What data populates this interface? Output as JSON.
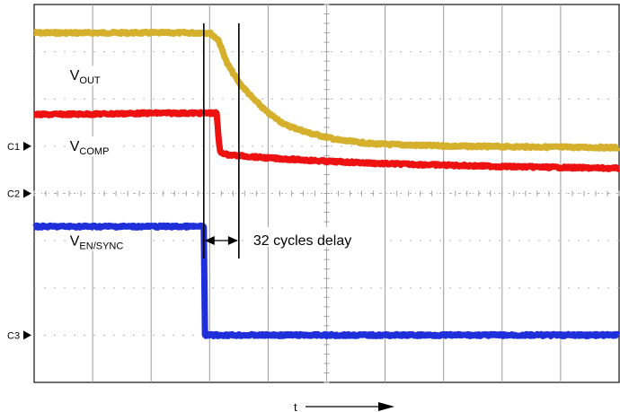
{
  "chart_data": {
    "type": "line",
    "title": "",
    "x_axis": {
      "label": "t",
      "divisions": 10
    },
    "y_axis": {
      "divisions": 8
    },
    "grid": true,
    "channel_markers": [
      {
        "label": "C1",
        "level": 5.0
      },
      {
        "label": "C2",
        "level": 4.0
      },
      {
        "label": "C3",
        "level": 1.0
      }
    ],
    "series": [
      {
        "name": "V",
        "subscript": "OUT",
        "color": "#d4b02c",
        "label_pos": [
          0.15,
          6.4
        ],
        "points": [
          [
            0.0,
            7.4
          ],
          [
            1.0,
            7.4
          ],
          [
            2.0,
            7.4
          ],
          [
            3.0,
            7.4
          ],
          [
            3.15,
            7.25
          ],
          [
            3.3,
            6.75
          ],
          [
            3.5,
            6.35
          ],
          [
            3.75,
            6.0
          ],
          [
            4.0,
            5.7
          ],
          [
            4.3,
            5.45
          ],
          [
            4.7,
            5.28
          ],
          [
            5.2,
            5.13
          ],
          [
            5.8,
            5.05
          ],
          [
            6.5,
            5.02
          ],
          [
            7.2,
            5.0
          ],
          [
            8.0,
            4.99
          ],
          [
            9.0,
            4.98
          ],
          [
            10.0,
            4.97
          ]
        ]
      },
      {
        "name": "V",
        "subscript": "COMP",
        "color": "#ee1111",
        "label_pos": [
          0.15,
          4.9
        ],
        "points": [
          [
            0.0,
            5.67
          ],
          [
            1.0,
            5.68
          ],
          [
            2.0,
            5.7
          ],
          [
            3.0,
            5.7
          ],
          [
            3.12,
            5.7
          ],
          [
            3.15,
            5.2
          ],
          [
            3.18,
            4.88
          ],
          [
            3.3,
            4.82
          ],
          [
            4.0,
            4.75
          ],
          [
            5.0,
            4.68
          ],
          [
            6.0,
            4.63
          ],
          [
            7.0,
            4.6
          ],
          [
            8.0,
            4.57
          ],
          [
            9.0,
            4.55
          ],
          [
            10.0,
            4.53
          ]
        ]
      },
      {
        "name": "V",
        "subscript": "EN/SYNC",
        "color": "#1f2fd9",
        "label_pos": [
          0.15,
          2.9
        ],
        "points": [
          [
            0.0,
            3.3
          ],
          [
            1.0,
            3.3
          ],
          [
            2.0,
            3.3
          ],
          [
            2.9,
            3.3
          ],
          [
            2.92,
            1.0
          ],
          [
            4.0,
            1.0
          ],
          [
            5.0,
            1.0
          ],
          [
            6.0,
            1.0
          ],
          [
            7.0,
            1.0
          ],
          [
            8.0,
            1.0
          ],
          [
            9.0,
            1.0
          ],
          [
            10.0,
            1.0
          ]
        ]
      }
    ],
    "annotations": [
      {
        "text": "32 cycles delay",
        "x_start": 2.9,
        "x_end": 3.5
      }
    ]
  }
}
